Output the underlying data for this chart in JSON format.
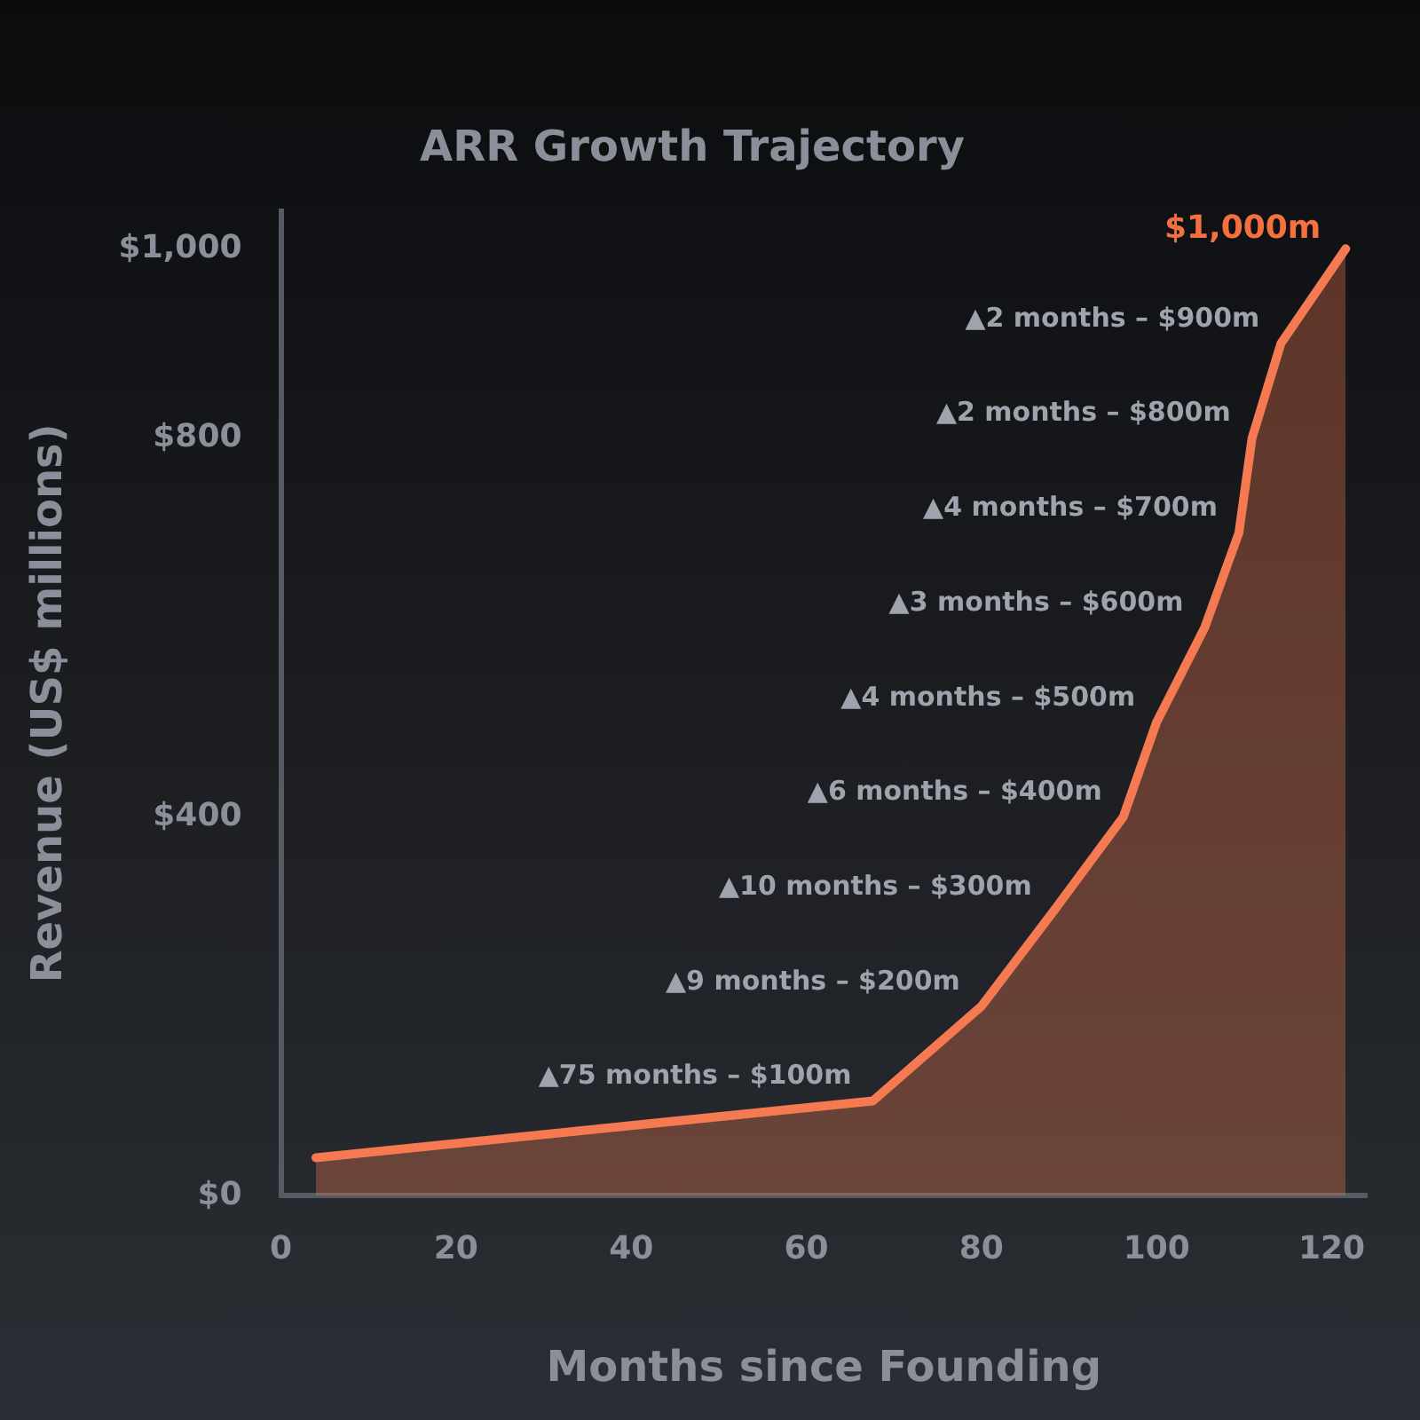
{
  "chart_data": {
    "type": "area",
    "title": "ARR Growth Trajectory",
    "xlabel": "Months since Founding",
    "ylabel": "Revenue (US$ millions)",
    "x": [
      4,
      67.6,
      80,
      88.2,
      96.2,
      100,
      105.5,
      109.4,
      110.9,
      114.2,
      121.6
    ],
    "series": [
      {
        "color": "#f57a52",
        "values": [
          40,
          100,
          200,
          300,
          400,
          500,
          600,
          700,
          800,
          900,
          1000
        ]
      }
    ],
    "xlim": [
      0,
      124
    ],
    "xticks": [
      0,
      20,
      40,
      60,
      80,
      100,
      120
    ],
    "ylim": [
      0,
      1040
    ],
    "yticks": [
      {
        "value": 0,
        "label": "$0"
      },
      {
        "value": 400,
        "label": "$400"
      },
      {
        "value": 800,
        "label": "$800"
      },
      {
        "value": 1000,
        "label": "$1,000"
      }
    ],
    "grid": false,
    "legend": false,
    "annotations": [
      {
        "text": "▲75 months – $100m",
        "x": 67.6,
        "y": 100
      },
      {
        "text": "▲9 months – $200m",
        "x": 80,
        "y": 200
      },
      {
        "text": "▲10 months – $300m",
        "x": 88.2,
        "y": 300
      },
      {
        "text": "▲6 months – $400m",
        "x": 96.2,
        "y": 400
      },
      {
        "text": "▲4 months – $500m",
        "x": 100,
        "y": 500
      },
      {
        "text": "▲3 months – $600m",
        "x": 105.5,
        "y": 600
      },
      {
        "text": "▲4 months – $700m",
        "x": 109.4,
        "y": 700
      },
      {
        "text": "▲2 months – $800m",
        "x": 110.9,
        "y": 800
      },
      {
        "text": "▲2 months – $900m",
        "x": 114.2,
        "y": 900
      },
      {
        "text": "$1,000m",
        "x": 121.6,
        "y": 1000
      }
    ]
  }
}
